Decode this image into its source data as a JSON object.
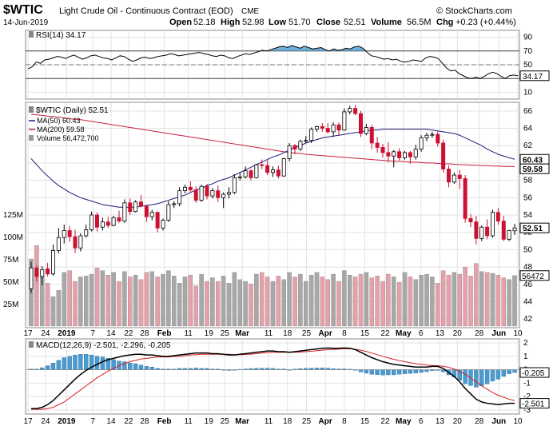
{
  "header": {
    "symbol": "$WTIC",
    "description": "Light Crude Oil - Continuous Contract (EOD)",
    "exchange": "CME",
    "date": "14-Jun-2019",
    "watermark": "© StockCharts.com",
    "open_label": "Open",
    "open": "52.18",
    "high_label": "High",
    "high": "52.98",
    "low_label": "Low",
    "low": "51.70",
    "close_label": "Close",
    "close": "52.51",
    "volume_label": "Volume",
    "volume": "56.5M",
    "chg_label": "Chg",
    "chg": "+0.23 (+0.44%)"
  },
  "colors": {
    "up": "#000000",
    "down": "#cc1133",
    "ma50": "#1a1a7a",
    "ma200": "#c81e3c",
    "vol_up": "#a8a8a8",
    "vol_down": "#e6a0aa",
    "hist": "#4a9bd0",
    "rsi": "#000000"
  },
  "chart_data": [
    {
      "type": "line",
      "title": "RSI(14) 34.17",
      "series": [
        {
          "name": "RSI(14)",
          "values": [
            44,
            47,
            54,
            52,
            57,
            58,
            60,
            62,
            61,
            59,
            62,
            64,
            61,
            58,
            60,
            63,
            64,
            62,
            60,
            59,
            57,
            60,
            63,
            62,
            58,
            55,
            57,
            60,
            61,
            59,
            60,
            62,
            63,
            64,
            66,
            65,
            63,
            64,
            65,
            66,
            67,
            68,
            66,
            65,
            63,
            62,
            64,
            63,
            60,
            59,
            62,
            64,
            66,
            65,
            67,
            69,
            71,
            70,
            72,
            74,
            76,
            77,
            75,
            78,
            76,
            74,
            77,
            75,
            73,
            74,
            75,
            72,
            70,
            73,
            71,
            72,
            74,
            73,
            76,
            77,
            74,
            68,
            63,
            62,
            60,
            58,
            59,
            57,
            58,
            55,
            54,
            55,
            57,
            56,
            55,
            60,
            62,
            61,
            59,
            52,
            45,
            41,
            42,
            37,
            34,
            31,
            30,
            32,
            30,
            33,
            37,
            39,
            37,
            33,
            30,
            34,
            35,
            34
          ]
        }
      ],
      "reference_lines": [
        70,
        50,
        30
      ],
      "axis_ticks": [
        "90",
        "70",
        "50",
        "30",
        "10"
      ],
      "ylim": [
        0,
        100
      ],
      "last_value": "34.17"
    },
    {
      "type": "bar",
      "title": "$WTIC (Daily) 52.51",
      "legend": [
        "$WTIC (Daily) 52.51",
        "MA(50) 60.43",
        "MA(200) 59.58",
        "Volume 56,472,700"
      ],
      "candles": [
        [
          45.5,
          48.6,
          45.0,
          47.9
        ],
        [
          47.9,
          48.2,
          46.3,
          46.9
        ],
        [
          46.9,
          48.1,
          45.9,
          47.7
        ],
        [
          47.8,
          48.5,
          46.9,
          47.2
        ],
        [
          47.2,
          50.6,
          47.0,
          49.9
        ],
        [
          49.9,
          52.5,
          49.6,
          51.4
        ],
        [
          51.4,
          52.9,
          50.7,
          52.2
        ],
        [
          52.2,
          52.7,
          50.9,
          51.5
        ],
        [
          51.5,
          52.3,
          49.6,
          50.2
        ],
        [
          50.2,
          51.9,
          49.8,
          51.6
        ],
        [
          51.6,
          52.9,
          51.4,
          52.3
        ],
        [
          52.3,
          54.4,
          52.1,
          54.0
        ],
        [
          54.0,
          54.3,
          52.1,
          52.6
        ],
        [
          52.6,
          53.7,
          52.2,
          53.2
        ],
        [
          53.2,
          53.8,
          52.5,
          52.8
        ],
        [
          52.8,
          53.9,
          52.7,
          53.7
        ],
        [
          53.7,
          54.5,
          53.1,
          53.3
        ],
        [
          53.3,
          55.8,
          53.1,
          55.4
        ],
        [
          55.4,
          55.9,
          54.0,
          54.4
        ],
        [
          54.4,
          55.7,
          54.3,
          55.5
        ],
        [
          55.5,
          56.3,
          54.9,
          55.0
        ],
        [
          55.0,
          55.2,
          53.2,
          53.8
        ],
        [
          53.8,
          54.6,
          53.4,
          54.3
        ],
        [
          54.3,
          54.4,
          52.0,
          52.5
        ],
        [
          52.5,
          53.6,
          52.2,
          53.4
        ],
        [
          53.4,
          55.6,
          53.2,
          55.2
        ],
        [
          55.2,
          55.6,
          54.8,
          55.3
        ],
        [
          55.3,
          57.2,
          55.0,
          56.8
        ],
        [
          56.8,
          57.5,
          56.5,
          57.2
        ],
        [
          57.2,
          57.9,
          56.7,
          56.9
        ],
        [
          56.9,
          57.3,
          55.4,
          55.7
        ],
        [
          55.7,
          57.5,
          55.5,
          57.3
        ],
        [
          57.3,
          57.6,
          55.8,
          56.2
        ],
        [
          56.2,
          57.1,
          55.9,
          56.8
        ],
        [
          56.8,
          57.4,
          55.5,
          56.0
        ],
        [
          56.0,
          56.6,
          54.8,
          56.4
        ],
        [
          56.4,
          57.2,
          55.9,
          56.6
        ],
        [
          56.6,
          58.7,
          56.4,
          58.3
        ],
        [
          58.3,
          58.9,
          58.0,
          58.4
        ],
        [
          58.4,
          59.6,
          58.2,
          59.1
        ],
        [
          59.1,
          59.3,
          58.0,
          58.3
        ],
        [
          58.3,
          59.9,
          58.2,
          59.8
        ],
        [
          59.8,
          60.4,
          59.3,
          59.7
        ],
        [
          59.7,
          60.3,
          58.6,
          58.9
        ],
        [
          58.9,
          59.6,
          58.4,
          59.2
        ],
        [
          59.2,
          59.7,
          58.2,
          58.5
        ],
        [
          58.5,
          60.6,
          58.4,
          60.5
        ],
        [
          60.5,
          62.3,
          60.2,
          62.0
        ],
        [
          62.0,
          62.2,
          61.0,
          61.6
        ],
        [
          61.6,
          62.7,
          61.4,
          62.5
        ],
        [
          62.5,
          63.1,
          62.3,
          62.6
        ],
        [
          62.6,
          64.1,
          62.3,
          63.9
        ],
        [
          63.9,
          64.3,
          63.6,
          64.2
        ],
        [
          64.2,
          64.6,
          63.6,
          64.0
        ],
        [
          64.0,
          64.6,
          63.4,
          63.6
        ],
        [
          63.6,
          64.7,
          63.0,
          64.4
        ],
        [
          64.4,
          64.7,
          63.2,
          63.8
        ],
        [
          63.8,
          66.3,
          63.7,
          65.9
        ],
        [
          65.9,
          66.6,
          65.6,
          66.3
        ],
        [
          66.3,
          66.7,
          65.5,
          65.7
        ],
        [
          65.7,
          66.0,
          63.0,
          63.4
        ],
        [
          63.4,
          64.5,
          63.2,
          64.1
        ],
        [
          64.1,
          64.4,
          61.6,
          62.3
        ],
        [
          62.3,
          63.0,
          61.2,
          61.8
        ],
        [
          61.8,
          62.2,
          60.6,
          61.2
        ],
        [
          61.2,
          62.4,
          60.1,
          60.8
        ],
        [
          60.8,
          61.5,
          59.5,
          61.3
        ],
        [
          61.3,
          61.7,
          60.3,
          60.6
        ],
        [
          60.6,
          61.4,
          60.4,
          61.2
        ],
        [
          61.2,
          61.4,
          59.9,
          60.7
        ],
        [
          60.7,
          62.1,
          60.4,
          61.6
        ],
        [
          61.6,
          63.2,
          61.3,
          62.9
        ],
        [
          62.9,
          63.5,
          62.5,
          63.2
        ],
        [
          63.2,
          63.6,
          62.9,
          63.3
        ],
        [
          63.3,
          63.7,
          61.9,
          62.3
        ],
        [
          62.3,
          62.7,
          58.9,
          59.3
        ],
        [
          59.3,
          59.7,
          57.2,
          57.8
        ],
        [
          57.8,
          58.9,
          57.6,
          58.6
        ],
        [
          58.6,
          59.2,
          57.0,
          58.2
        ],
        [
          58.2,
          58.6,
          53.1,
          53.6
        ],
        [
          53.6,
          54.1,
          52.6,
          53.2
        ],
        [
          53.2,
          53.9,
          50.6,
          51.3
        ],
        [
          51.3,
          52.8,
          51.0,
          52.6
        ],
        [
          52.6,
          53.5,
          51.2,
          51.6
        ],
        [
          51.6,
          54.6,
          51.4,
          54.3
        ],
        [
          54.3,
          54.8,
          52.9,
          53.3
        ],
        [
          53.3,
          53.9,
          51.0,
          51.2
        ],
        [
          51.2,
          52.3,
          51.0,
          52.2
        ],
        [
          52.18,
          52.98,
          51.7,
          52.51
        ]
      ],
      "ma50": [
        60.5,
        59.8,
        59.1,
        58.5,
        57.9,
        57.4,
        57.0,
        56.6,
        56.3,
        56.0,
        55.8,
        55.6,
        55.4,
        55.2,
        55.1,
        55.0,
        54.9,
        54.9,
        54.9,
        54.9,
        55.0,
        55.1,
        55.2,
        55.3,
        55.5,
        55.7,
        55.9,
        56.1,
        56.3,
        56.6,
        56.9,
        57.1,
        57.4,
        57.6,
        57.9,
        58.1,
        58.3,
        58.6,
        58.9,
        59.2,
        59.5,
        59.8,
        60.1,
        60.4,
        60.7,
        60.9,
        61.2,
        61.5,
        61.8,
        62.0,
        62.3,
        62.5,
        62.7,
        62.9,
        63.0,
        63.1,
        63.2,
        63.3,
        63.4,
        63.5,
        63.6,
        63.7,
        63.8,
        63.8,
        63.9,
        63.9,
        63.9,
        63.9,
        63.9,
        63.9,
        63.9,
        63.9,
        63.9,
        63.8,
        63.7,
        63.6,
        63.5,
        63.4,
        63.2,
        62.9,
        62.6,
        62.3,
        62.0,
        61.6,
        61.3,
        61.0,
        60.8,
        60.6,
        60.43
      ],
      "ma200": [
        65.6,
        65.55,
        65.5,
        65.4,
        65.35,
        65.3,
        65.2,
        65.1,
        65.05,
        65.0,
        64.9,
        64.8,
        64.7,
        64.6,
        64.5,
        64.4,
        64.3,
        64.2,
        64.1,
        64.0,
        63.9,
        63.8,
        63.7,
        63.6,
        63.5,
        63.4,
        63.3,
        63.2,
        63.1,
        63.0,
        62.9,
        62.8,
        62.7,
        62.6,
        62.5,
        62.4,
        62.3,
        62.2,
        62.1,
        62.0,
        61.9,
        61.8,
        61.7,
        61.6,
        61.5,
        61.4,
        61.3,
        61.2,
        61.15,
        61.1,
        61.0,
        60.95,
        60.9,
        60.85,
        60.8,
        60.75,
        60.7,
        60.65,
        60.6,
        60.55,
        60.5,
        60.45,
        60.4,
        60.35,
        60.3,
        60.25,
        60.2,
        60.2,
        60.15,
        60.1,
        60.1,
        60.05,
        60.0,
        60.0,
        59.95,
        59.9,
        59.9,
        59.85,
        59.8,
        59.8,
        59.75,
        59.75,
        59.7,
        59.7,
        59.65,
        59.65,
        59.6,
        59.6,
        59.58
      ],
      "volume_m": [
        75,
        90,
        55,
        48,
        33,
        40,
        60,
        62,
        50,
        55,
        56,
        58,
        65,
        62,
        57,
        60,
        50,
        61,
        55,
        57,
        52,
        60,
        61,
        55,
        58,
        62,
        56,
        48,
        55,
        57,
        45,
        58,
        50,
        54,
        50,
        56,
        48,
        60,
        52,
        50,
        47,
        58,
        60,
        55,
        50,
        56,
        52,
        60,
        55,
        58,
        50,
        57,
        60,
        55,
        52,
        58,
        50,
        62,
        57,
        55,
        58,
        60,
        54,
        56,
        50,
        58,
        55,
        49,
        60,
        55,
        52,
        57,
        58,
        55,
        48,
        62,
        57,
        60,
        58,
        66,
        56,
        70,
        61,
        60,
        59,
        57,
        54,
        52,
        56.47
      ],
      "axis_ticks": [
        "66",
        "64",
        "62",
        "60",
        "58",
        "56",
        "54",
        "52",
        "50",
        "48",
        "46",
        "44",
        "42"
      ],
      "volume_ticks": [
        "125M",
        "100M",
        "75M",
        "50M",
        "25M"
      ],
      "ylim": [
        41,
        67
      ],
      "last_close": "52.51",
      "ma50_label": "60.43",
      "ma200_label": "59.58",
      "volume_label": "56472"
    },
    {
      "type": "line",
      "title": "MACD(12,26,9) -2.501, -2.296, -0.205",
      "series": [
        {
          "name": "MACD",
          "values": [
            -2.9,
            -2.9,
            -2.8,
            -2.6,
            -2.3,
            -1.9,
            -1.5,
            -1.1,
            -0.7,
            -0.35,
            -0.05,
            0.2,
            0.4,
            0.6,
            0.75,
            0.85,
            0.95,
            1.05,
            1.1,
            1.15,
            1.15,
            1.1,
            1.1,
            1.05,
            1.0,
            1.0,
            1.05,
            1.1,
            1.15,
            1.2,
            1.25,
            1.25,
            1.25,
            1.2,
            1.2,
            1.15,
            1.1,
            1.1,
            1.15,
            1.2,
            1.25,
            1.3,
            1.35,
            1.4,
            1.4,
            1.35,
            1.35,
            1.3,
            1.35,
            1.4,
            1.45,
            1.5,
            1.55,
            1.6,
            1.62,
            1.6,
            1.6,
            1.62,
            1.6,
            1.5,
            1.3,
            1.1,
            0.9,
            0.75,
            0.6,
            0.5,
            0.4,
            0.35,
            0.3,
            0.25,
            0.2,
            0.2,
            0.2,
            0.25,
            0.25,
            0.1,
            -0.2,
            -0.5,
            -0.9,
            -1.4,
            -1.8,
            -2.2,
            -2.4,
            -2.5,
            -2.55,
            -2.6,
            -2.55,
            -2.5,
            -2.501
          ]
        },
        {
          "name": "Signal",
          "values": [
            -2.95,
            -2.95,
            -2.95,
            -2.9,
            -2.8,
            -2.6,
            -2.4,
            -2.1,
            -1.8,
            -1.5,
            -1.2,
            -0.9,
            -0.6,
            -0.35,
            -0.1,
            0.1,
            0.3,
            0.45,
            0.6,
            0.7,
            0.8,
            0.85,
            0.9,
            0.95,
            0.95,
            0.95,
            1.0,
            1.0,
            1.05,
            1.1,
            1.12,
            1.15,
            1.15,
            1.15,
            1.15,
            1.15,
            1.15,
            1.12,
            1.12,
            1.14,
            1.16,
            1.2,
            1.24,
            1.28,
            1.3,
            1.3,
            1.3,
            1.3,
            1.3,
            1.32,
            1.35,
            1.38,
            1.42,
            1.46,
            1.5,
            1.52,
            1.54,
            1.56,
            1.56,
            1.53,
            1.46,
            1.36,
            1.24,
            1.12,
            1.0,
            0.88,
            0.78,
            0.68,
            0.6,
            0.52,
            0.45,
            0.4,
            0.35,
            0.32,
            0.3,
            0.26,
            0.18,
            0.05,
            -0.12,
            -0.35,
            -0.62,
            -0.9,
            -1.2,
            -1.45,
            -1.7,
            -1.9,
            -2.05,
            -2.2,
            -2.296
          ]
        }
      ],
      "histogram": "MACD minus Signal",
      "axis_ticks": [
        "2",
        "1",
        "0",
        "-1",
        "-2",
        "-3"
      ],
      "ylim": [
        -3.3,
        2.3
      ],
      "last_values": [
        "-0.205",
        "-2.501"
      ]
    }
  ],
  "x_labels": [
    "17",
    "24",
    "2019",
    "7",
    "14",
    "22",
    "28",
    "Feb",
    "11",
    "19",
    "25",
    "Mar",
    "11",
    "18",
    "25",
    "Apr",
    "8",
    "15",
    "22",
    "May",
    "6",
    "13",
    "20",
    "28",
    "Jun",
    "10"
  ]
}
